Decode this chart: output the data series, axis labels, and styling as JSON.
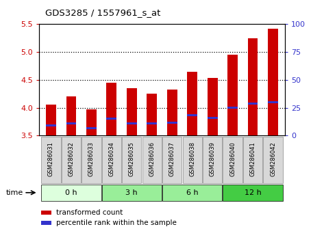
{
  "title": "GDS3285 / 1557961_s_at",
  "samples": [
    "GSM286031",
    "GSM286032",
    "GSM286033",
    "GSM286034",
    "GSM286035",
    "GSM286036",
    "GSM286037",
    "GSM286038",
    "GSM286039",
    "GSM286040",
    "GSM286041",
    "GSM286042"
  ],
  "transformed_count": [
    4.05,
    4.2,
    3.97,
    4.45,
    4.35,
    4.25,
    4.33,
    4.65,
    4.53,
    4.95,
    5.25,
    5.42
  ],
  "percentile_rank": [
    3.68,
    3.72,
    3.63,
    3.8,
    3.72,
    3.72,
    3.73,
    3.87,
    3.82,
    4.0,
    4.07,
    4.1
  ],
  "y_min": 3.5,
  "y_max": 5.5,
  "y_ticks": [
    3.5,
    4.0,
    4.5,
    5.0,
    5.5
  ],
  "y2_ticks": [
    0,
    25,
    50,
    75,
    100
  ],
  "bar_color": "#cc0000",
  "percentile_color": "#3333cc",
  "group_defs": [
    {
      "label": "0 h",
      "start": 0,
      "end": 2,
      "color": "#ddffdd"
    },
    {
      "label": "3 h",
      "start": 3,
      "end": 5,
      "color": "#99ee99"
    },
    {
      "label": "6 h",
      "start": 6,
      "end": 8,
      "color": "#99ee99"
    },
    {
      "label": "12 h",
      "start": 9,
      "end": 11,
      "color": "#44cc44"
    }
  ],
  "legend_count_label": "transformed count",
  "legend_pct_label": "percentile rank within the sample",
  "bg_color": "#ffffff",
  "tick_label_color_left": "#cc0000",
  "tick_label_color_right": "#3333cc",
  "bar_width": 0.5,
  "blue_bar_height": 0.035,
  "grid_lines": [
    4.0,
    4.5,
    5.0
  ],
  "sample_box_color": "#d8d8d8",
  "sample_box_edge": "#888888"
}
